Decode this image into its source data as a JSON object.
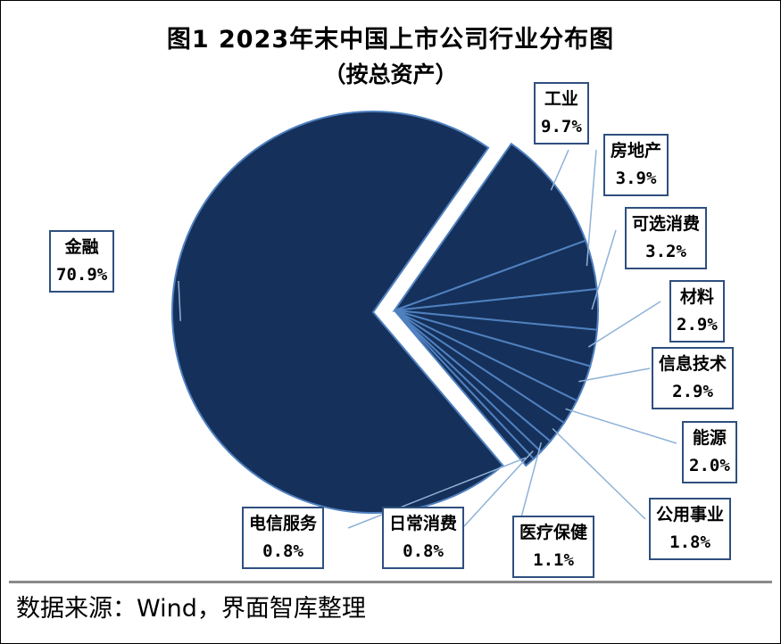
{
  "chart_data": {
    "type": "pie",
    "title": "图1 2023年末中国上市公司行业分布图",
    "subtitle": "（按总资产）",
    "colors": {
      "fill": "#15305a",
      "stroke": "#4f80bf",
      "leader": "#8fb2d8",
      "label_border": "#2f4f7f"
    },
    "slices": [
      {
        "name": "金融",
        "value": 70.9,
        "pct_label": "70.9%"
      },
      {
        "name": "工业",
        "value": 9.7,
        "pct_label": "9.7%"
      },
      {
        "name": "房地产",
        "value": 3.9,
        "pct_label": "3.9%"
      },
      {
        "name": "可选消费",
        "value": 3.2,
        "pct_label": "3.2%"
      },
      {
        "name": "材料",
        "value": 2.9,
        "pct_label": "2.9%"
      },
      {
        "name": "信息技术",
        "value": 2.9,
        "pct_label": "2.9%"
      },
      {
        "name": "能源",
        "value": 2.0,
        "pct_label": "2.0%"
      },
      {
        "name": "公用事业",
        "value": 1.8,
        "pct_label": "1.8%"
      },
      {
        "name": "医疗保健",
        "value": 1.1,
        "pct_label": "1.1%"
      },
      {
        "name": "日常消费",
        "value": 0.8,
        "pct_label": "0.8%"
      },
      {
        "name": "电信服务",
        "value": 0.8,
        "pct_label": "0.8%"
      }
    ],
    "legend": "none"
  },
  "source": "数据来源：Wind，界面智库整理"
}
